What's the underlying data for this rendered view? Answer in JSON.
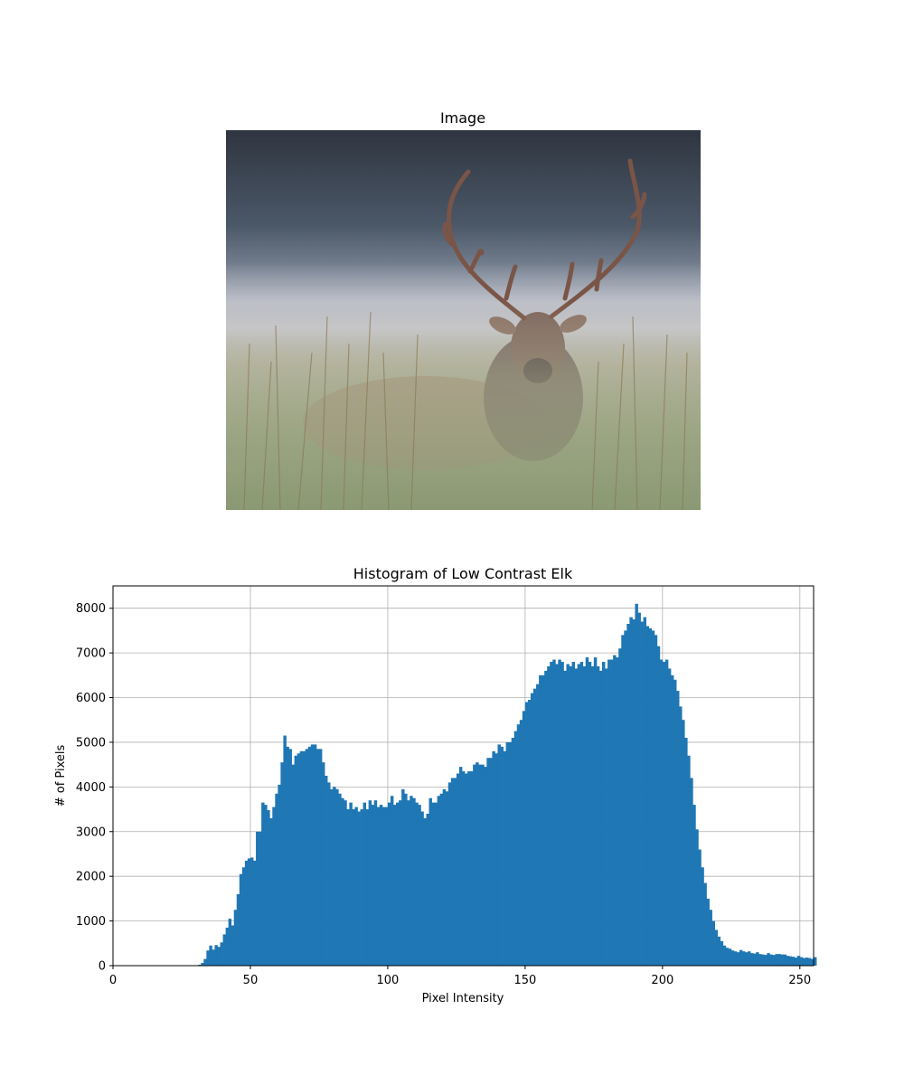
{
  "image_panel": {
    "title": "Image"
  },
  "chart_data": {
    "type": "bar",
    "title": "Histogram of Low Contrast Elk",
    "xlabel": "Pixel Intensity",
    "ylabel": "# of Pixels",
    "xlim": [
      0,
      255
    ],
    "ylim": [
      0,
      8500
    ],
    "xticks": [
      0,
      50,
      100,
      150,
      200,
      250
    ],
    "yticks": [
      0,
      1000,
      2000,
      3000,
      4000,
      5000,
      6000,
      7000,
      8000
    ],
    "grid": true,
    "bar_color": "#1f77b4",
    "x": [
      0,
      1,
      2,
      3,
      4,
      5,
      6,
      7,
      8,
      9,
      10,
      11,
      12,
      13,
      14,
      15,
      16,
      17,
      18,
      19,
      20,
      21,
      22,
      23,
      24,
      25,
      26,
      27,
      28,
      29,
      30,
      31,
      32,
      33,
      34,
      35,
      36,
      37,
      38,
      39,
      40,
      41,
      42,
      43,
      44,
      45,
      46,
      47,
      48,
      49,
      50,
      51,
      52,
      53,
      54,
      55,
      56,
      57,
      58,
      59,
      60,
      61,
      62,
      63,
      64,
      65,
      66,
      67,
      68,
      69,
      70,
      71,
      72,
      73,
      74,
      75,
      76,
      77,
      78,
      79,
      80,
      81,
      82,
      83,
      84,
      85,
      86,
      87,
      88,
      89,
      90,
      91,
      92,
      93,
      94,
      95,
      96,
      97,
      98,
      99,
      100,
      101,
      102,
      103,
      104,
      105,
      106,
      107,
      108,
      109,
      110,
      111,
      112,
      113,
      114,
      115,
      116,
      117,
      118,
      119,
      120,
      121,
      122,
      123,
      124,
      125,
      126,
      127,
      128,
      129,
      130,
      131,
      132,
      133,
      134,
      135,
      136,
      137,
      138,
      139,
      140,
      141,
      142,
      143,
      144,
      145,
      146,
      147,
      148,
      149,
      150,
      151,
      152,
      153,
      154,
      155,
      156,
      157,
      158,
      159,
      160,
      161,
      162,
      163,
      164,
      165,
      166,
      167,
      168,
      169,
      170,
      171,
      172,
      173,
      174,
      175,
      176,
      177,
      178,
      179,
      180,
      181,
      182,
      183,
      184,
      185,
      186,
      187,
      188,
      189,
      190,
      191,
      192,
      193,
      194,
      195,
      196,
      197,
      198,
      199,
      200,
      201,
      202,
      203,
      204,
      205,
      206,
      207,
      208,
      209,
      210,
      211,
      212,
      213,
      214,
      215,
      216,
      217,
      218,
      219,
      220,
      221,
      222,
      223,
      224,
      225,
      226,
      227,
      228,
      229,
      230,
      231,
      232,
      233,
      234,
      235,
      236,
      237,
      238,
      239,
      240,
      241,
      242,
      243,
      244,
      245,
      246,
      247,
      248,
      249,
      250,
      251,
      252,
      253,
      254,
      255
    ],
    "values": [
      0,
      0,
      0,
      0,
      0,
      0,
      0,
      0,
      0,
      0,
      0,
      0,
      0,
      0,
      0,
      0,
      0,
      0,
      0,
      0,
      0,
      0,
      0,
      0,
      0,
      0,
      0,
      0,
      0,
      0,
      0,
      20,
      60,
      150,
      340,
      450,
      360,
      460,
      420,
      520,
      700,
      850,
      1050,
      900,
      1250,
      1600,
      2050,
      2200,
      2350,
      2400,
      2420,
      2350,
      3000,
      3000,
      3650,
      3600,
      3480,
      3300,
      3550,
      3850,
      4050,
      4550,
      5150,
      4900,
      4850,
      4500,
      4700,
      4750,
      4800,
      4800,
      4850,
      4900,
      4950,
      4950,
      4850,
      4850,
      4550,
      4250,
      4100,
      3950,
      4000,
      3950,
      3850,
      3750,
      3700,
      3500,
      3650,
      3500,
      3550,
      3450,
      3500,
      3650,
      3500,
      3700,
      3600,
      3700,
      3550,
      3600,
      3550,
      3550,
      3650,
      3800,
      3600,
      3650,
      3700,
      3950,
      3850,
      3700,
      3800,
      3750,
      3650,
      3600,
      3450,
      3300,
      3400,
      3750,
      3650,
      3650,
      3800,
      3850,
      3950,
      3900,
      4100,
      4200,
      4200,
      4300,
      4450,
      4350,
      4300,
      4350,
      4350,
      4500,
      4550,
      4500,
      4500,
      4450,
      4650,
      4650,
      4800,
      4750,
      4950,
      4900,
      4800,
      5000,
      5000,
      5100,
      5250,
      5400,
      5500,
      5700,
      5900,
      5950,
      6100,
      6200,
      6300,
      6500,
      6500,
      6600,
      6700,
      6800,
      6850,
      6750,
      6850,
      6800,
      6600,
      6750,
      6700,
      6800,
      6650,
      6750,
      6800,
      6700,
      6900,
      6800,
      6700,
      6900,
      6700,
      6600,
      6800,
      6650,
      6850,
      6850,
      6950,
      6900,
      7100,
      7400,
      7500,
      7650,
      7800,
      7750,
      8100,
      7900,
      7700,
      7800,
      7600,
      7550,
      7500,
      7400,
      7150,
      6850,
      6800,
      6850,
      6650,
      6500,
      6400,
      6150,
      5800,
      5500,
      5100,
      4700,
      4200,
      3600,
      3050,
      2600,
      2200,
      1850,
      1500,
      1250,
      1000,
      800,
      650,
      550,
      450,
      400,
      380,
      340,
      320,
      300,
      350,
      320,
      300,
      320,
      280,
      270,
      300,
      260,
      250,
      240,
      280,
      250,
      240,
      260,
      260,
      250,
      250,
      220,
      210,
      200,
      180,
      220,
      190,
      170,
      180,
      170,
      150,
      190
    ],
    "data_labels": []
  }
}
